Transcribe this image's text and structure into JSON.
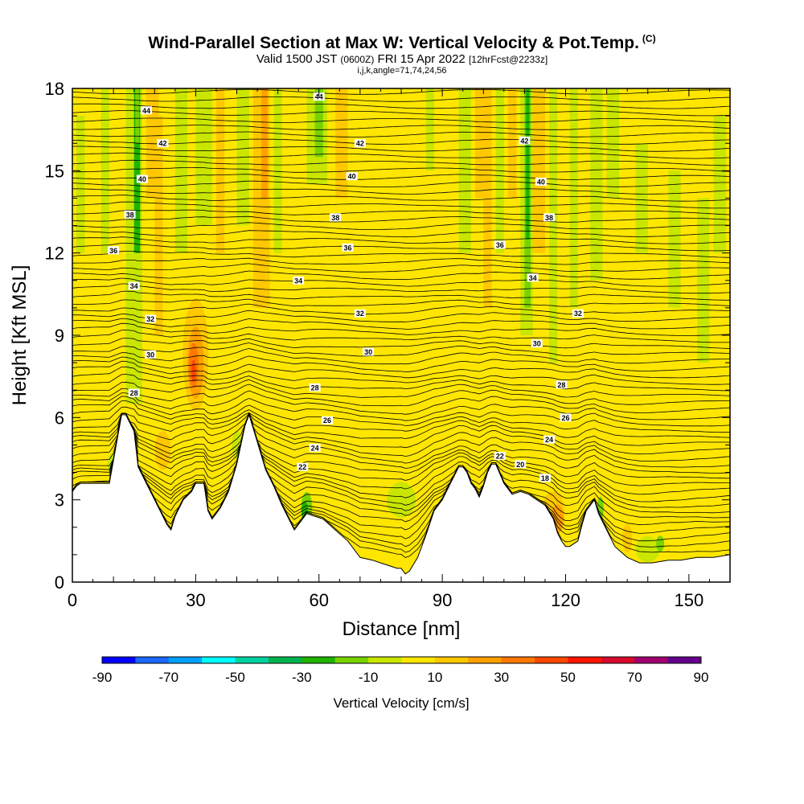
{
  "header": {
    "title": "Wind-Parallel Section at Max W: Vertical Velocity & Pot.Temp.",
    "copyright": "(C)",
    "valid_prefix": "Valid 1500 JST",
    "valid_zulu": "(0600Z)",
    "valid_date": "FRI 15 Apr 2022",
    "forecast": "[12hrFcst@2233z]",
    "indices": "i,j,k,angle=71,74,24,56"
  },
  "chart_data": {
    "type": "heatmap",
    "xlabel": "Distance [nm]",
    "ylabel": "Height [Kft MSL]",
    "xlim": [
      0,
      160
    ],
    "ylim": [
      0,
      18
    ],
    "x_ticks": [
      "0",
      "30",
      "60",
      "90",
      "120",
      "150"
    ],
    "y_ticks": [
      "0",
      "3",
      "6",
      "9",
      "12",
      "15",
      "18"
    ],
    "x_tick_values": [
      0,
      30,
      60,
      90,
      120,
      150
    ],
    "y_tick_values": [
      0,
      3,
      6,
      9,
      12,
      15,
      18
    ],
    "colorbar": {
      "title": "Vertical Velocity [cm/s]",
      "bounds": [
        -90,
        90
      ],
      "step": 10,
      "tick_labels": [
        "-90",
        "-70",
        "-50",
        "-30",
        "-10",
        "10",
        "30",
        "50",
        "70",
        "90"
      ],
      "tick_values": [
        -90,
        -70,
        -50,
        -30,
        -10,
        10,
        30,
        50,
        70,
        90
      ],
      "colors": [
        "#0000ff",
        "#1a66ff",
        "#00a0ff",
        "#00ffff",
        "#00d2a0",
        "#00b450",
        "#1eb400",
        "#78d200",
        "#c8e600",
        "#ffe600",
        "#ffc800",
        "#ffa000",
        "#ff7800",
        "#ff4600",
        "#ff1400",
        "#d70a2d",
        "#a0006e",
        "#64008c"
      ]
    },
    "terrain": {
      "x": [
        0,
        1,
        2,
        5,
        9,
        12,
        13,
        15,
        16,
        18,
        20,
        22,
        23,
        24,
        25,
        27,
        29,
        30,
        32,
        33,
        34,
        36,
        38,
        40,
        42,
        43,
        45,
        47,
        49,
        51,
        53,
        54,
        55,
        57,
        59,
        61,
        64,
        67,
        70,
        73,
        75,
        77,
        79,
        80,
        81,
        82,
        84,
        86,
        88,
        90,
        92,
        94,
        95,
        96,
        97,
        98,
        99,
        100,
        101,
        102,
        103,
        105,
        107,
        109,
        111,
        113,
        115,
        117,
        118,
        119,
        120,
        121,
        123,
        124,
        125,
        126,
        127,
        128,
        129,
        130,
        132,
        135,
        138,
        141,
        145,
        148,
        152,
        156,
        160
      ],
      "y": [
        3.3,
        3.5,
        3.6,
        3.6,
        3.6,
        6.1,
        6.1,
        5.5,
        4.2,
        3.6,
        3.0,
        2.4,
        2.1,
        1.9,
        2.4,
        3.0,
        3.3,
        3.6,
        3.6,
        2.6,
        2.3,
        2.7,
        3.3,
        4.3,
        5.7,
        6.1,
        5.1,
        4.1,
        3.5,
        2.8,
        2.2,
        1.9,
        2.1,
        2.5,
        2.4,
        2.3,
        1.9,
        1.5,
        0.9,
        0.8,
        0.7,
        0.6,
        0.5,
        0.5,
        0.3,
        0.4,
        0.9,
        1.7,
        2.6,
        3.0,
        3.6,
        4.2,
        4.2,
        4.0,
        3.6,
        3.4,
        3.1,
        3.5,
        4.0,
        4.3,
        4.3,
        3.6,
        3.2,
        3.3,
        3.2,
        3.0,
        2.8,
        2.3,
        1.8,
        1.5,
        1.3,
        1.3,
        1.5,
        2.1,
        2.6,
        2.8,
        3.0,
        2.5,
        2.2,
        1.9,
        1.3,
        0.9,
        0.7,
        0.7,
        0.8,
        0.8,
        0.9,
        0.9,
        1.0
      ]
    },
    "contour_labels": [
      {
        "text": "44",
        "x": 18,
        "y": 17.2
      },
      {
        "text": "44",
        "x": 60,
        "y": 17.7
      },
      {
        "text": "42",
        "x": 22,
        "y": 16.0
      },
      {
        "text": "42",
        "x": 70,
        "y": 16.0
      },
      {
        "text": "42",
        "x": 110,
        "y": 16.1
      },
      {
        "text": "40",
        "x": 17,
        "y": 14.7
      },
      {
        "text": "40",
        "x": 68,
        "y": 14.8
      },
      {
        "text": "40",
        "x": 114,
        "y": 14.6
      },
      {
        "text": "38",
        "x": 14,
        "y": 13.4
      },
      {
        "text": "38",
        "x": 64,
        "y": 13.3
      },
      {
        "text": "38",
        "x": 116,
        "y": 13.3
      },
      {
        "text": "36",
        "x": 10,
        "y": 12.1
      },
      {
        "text": "36",
        "x": 67,
        "y": 12.2
      },
      {
        "text": "36",
        "x": 104,
        "y": 12.3
      },
      {
        "text": "34",
        "x": 15,
        "y": 10.8
      },
      {
        "text": "34",
        "x": 55,
        "y": 11.0
      },
      {
        "text": "34",
        "x": 112,
        "y": 11.1
      },
      {
        "text": "32",
        "x": 19,
        "y": 9.6
      },
      {
        "text": "32",
        "x": 70,
        "y": 9.8
      },
      {
        "text": "32",
        "x": 123,
        "y": 9.8
      },
      {
        "text": "30",
        "x": 19,
        "y": 8.3
      },
      {
        "text": "30",
        "x": 72,
        "y": 8.4
      },
      {
        "text": "30",
        "x": 113,
        "y": 8.7
      },
      {
        "text": "28",
        "x": 15,
        "y": 6.9
      },
      {
        "text": "28",
        "x": 59,
        "y": 7.1
      },
      {
        "text": "28",
        "x": 119,
        "y": 7.2
      },
      {
        "text": "26",
        "x": 62,
        "y": 5.9
      },
      {
        "text": "26",
        "x": 120,
        "y": 6.0
      },
      {
        "text": "24",
        "x": 59,
        "y": 4.9
      },
      {
        "text": "24",
        "x": 116,
        "y": 5.2
      },
      {
        "text": "22",
        "x": 56,
        "y": 4.2
      },
      {
        "text": "22",
        "x": 104,
        "y": 4.6
      },
      {
        "text": "20",
        "x": 109,
        "y": 4.3
      },
      {
        "text": "18",
        "x": 115,
        "y": 3.8
      }
    ]
  }
}
